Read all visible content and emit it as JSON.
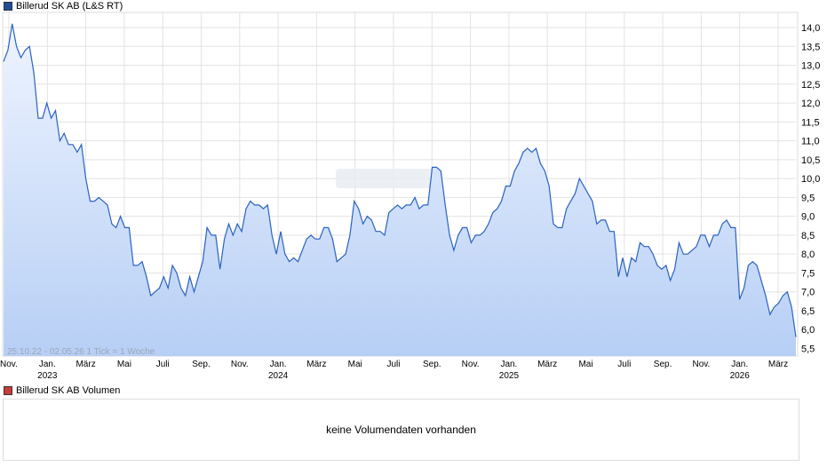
{
  "legend_price": {
    "label": "Billerud SK AB (L&S RT)",
    "color": "#1f4e9c"
  },
  "legend_volume": {
    "label": "Billerud SK AB Volumen",
    "color": "#cc3b3b"
  },
  "volume_message": "keine Volumendaten vorhanden",
  "range_note": "25.10.22 - 02.05.26   1 Tick = 1 Woche",
  "chart_data": {
    "type": "area",
    "ylim": [
      5.3,
      14.4
    ],
    "y_ticks": [
      "14,0",
      "13,5",
      "13,0",
      "12,5",
      "12,0",
      "11,5",
      "11,0",
      "10,5",
      "10,0",
      "9,5",
      "9,0",
      "8,5",
      "8,0",
      "7,5",
      "7,0",
      "6,5",
      "6,0",
      "5,5"
    ],
    "y_tick_values": [
      14.0,
      13.5,
      13.0,
      12.5,
      12.0,
      11.5,
      11.0,
      10.5,
      10.0,
      9.5,
      9.0,
      8.5,
      8.0,
      7.5,
      7.0,
      6.5,
      6.0,
      5.5
    ],
    "x_ticks": [
      {
        "label": "Nov.",
        "year": ""
      },
      {
        "label": "Jan.",
        "year": "2023"
      },
      {
        "label": "März",
        "year": ""
      },
      {
        "label": "Mai",
        "year": ""
      },
      {
        "label": "Juli",
        "year": ""
      },
      {
        "label": "Sep.",
        "year": ""
      },
      {
        "label": "Nov.",
        "year": ""
      },
      {
        "label": "Jan.",
        "year": "2024"
      },
      {
        "label": "März",
        "year": ""
      },
      {
        "label": "Mai",
        "year": ""
      },
      {
        "label": "Juli",
        "year": ""
      },
      {
        "label": "Sep.",
        "year": ""
      },
      {
        "label": "Nov.",
        "year": ""
      },
      {
        "label": "Jan.",
        "year": "2025"
      },
      {
        "label": "März",
        "year": ""
      },
      {
        "label": "Mai",
        "year": ""
      },
      {
        "label": "Juli",
        "year": ""
      },
      {
        "label": "Sep.",
        "year": ""
      },
      {
        "label": "Nov.",
        "year": ""
      },
      {
        "label": "Jan.",
        "year": "2026"
      },
      {
        "label": "März",
        "year": ""
      }
    ],
    "series": [
      {
        "values": [
          13.1,
          13.4,
          14.1,
          13.5,
          13.2,
          13.4,
          13.5,
          12.8,
          11.6,
          11.6,
          12.0,
          11.6,
          11.8,
          11.0,
          11.2,
          10.9,
          10.9,
          10.7,
          10.9,
          10.0,
          9.4,
          9.4,
          9.5,
          9.4,
          9.3,
          8.8,
          8.7,
          9.0,
          8.7,
          8.7,
          7.7,
          7.7,
          7.8,
          7.4,
          6.9,
          7.0,
          7.1,
          7.4,
          7.1,
          7.7,
          7.5,
          7.1,
          6.9,
          7.4,
          7.0,
          7.4,
          7.8,
          8.7,
          8.5,
          8.5,
          7.6,
          8.4,
          8.8,
          8.5,
          8.8,
          8.6,
          9.2,
          9.4,
          9.3,
          9.3,
          9.2,
          9.3,
          8.5,
          8.0,
          8.6,
          8.0,
          7.8,
          7.9,
          7.8,
          8.1,
          8.4,
          8.5,
          8.4,
          8.4,
          8.7,
          8.7,
          8.4,
          7.8,
          7.9,
          8.0,
          8.5,
          9.4,
          9.2,
          8.8,
          9.0,
          8.9,
          8.6,
          8.6,
          8.5,
          9.1,
          9.2,
          9.3,
          9.2,
          9.3,
          9.3,
          9.5,
          9.2,
          9.3,
          9.3,
          10.3,
          10.3,
          10.2,
          9.3,
          8.5,
          8.1,
          8.5,
          8.7,
          8.7,
          8.3,
          8.5,
          8.5,
          8.6,
          8.8,
          9.1,
          9.2,
          9.4,
          9.8,
          9.8,
          10.2,
          10.4,
          10.7,
          10.8,
          10.7,
          10.8,
          10.4,
          10.2,
          9.8,
          8.8,
          8.7,
          8.7,
          9.2,
          9.4,
          9.6,
          10.0,
          9.8,
          9.6,
          9.4,
          8.8,
          8.9,
          8.9,
          8.6,
          8.6,
          7.4,
          7.9,
          7.4,
          7.9,
          7.8,
          8.3,
          8.2,
          8.2,
          8.0,
          7.7,
          7.6,
          7.7,
          7.3,
          7.6,
          8.3,
          8.0,
          8.0,
          8.1,
          8.2,
          8.5,
          8.5,
          8.2,
          8.5,
          8.5,
          8.8,
          8.9,
          8.7,
          8.7,
          6.8,
          7.1,
          7.7,
          7.8,
          7.7,
          7.3,
          6.9,
          6.4,
          6.6,
          6.7,
          6.9,
          7.0,
          6.6,
          5.8
        ]
      }
    ],
    "grid": true,
    "legend": "top-left"
  }
}
